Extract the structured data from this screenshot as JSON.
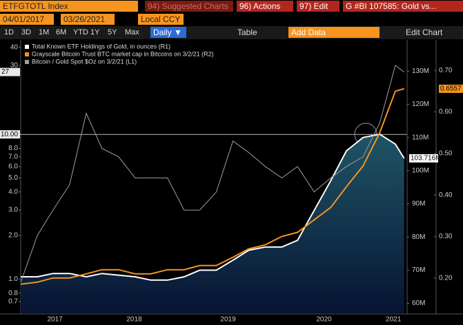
{
  "toolbar": {
    "ticker": "ETFGTOTL Index",
    "suggested": "94) Suggested Charts",
    "actions": "96) Actions",
    "edit": "97) Edit",
    "chart_title": "G #BI 107585: Gold vs...",
    "start": "04/01/2017",
    "end": "03/26/2021",
    "currency": "Local CCY",
    "ranges": [
      "1D",
      "3D",
      "1M",
      "6M",
      "YTD",
      "1Y",
      "5Y",
      "Max"
    ],
    "frequency": "Daily ▼",
    "table": "Table",
    "add_data": "Add Data",
    "edit_chart": "Edit Chart"
  },
  "chart_data": {
    "type": "line",
    "x": [
      2017.25,
      2017.42,
      2017.58,
      2017.75,
      2017.92,
      2018.08,
      2018.25,
      2018.42,
      2018.58,
      2018.75,
      2018.92,
      2019.08,
      2019.25,
      2019.42,
      2019.58,
      2019.75,
      2019.92,
      2020.08,
      2020.25,
      2020.42,
      2020.58,
      2020.75,
      2020.92,
      2021.08,
      2021.17
    ],
    "xlim": [
      2017.25,
      2021.2
    ],
    "xticks": [
      {
        "value": 2017.6,
        "label": "2017"
      },
      {
        "value": 2018.41,
        "label": "2018"
      },
      {
        "value": 2019.37,
        "label": "2019"
      },
      {
        "value": 2020.35,
        "label": "2020"
      },
      {
        "value": 2021.06,
        "label": "2021"
      }
    ],
    "ylim": [
      0.58,
      44
    ],
    "log_scale": true,
    "yticks": [
      0.7,
      0.8,
      {
        "value": 1,
        "label": "1.0"
      },
      {
        "value": 2,
        "label": "2.0"
      },
      {
        "value": 3,
        "label": "3.0"
      },
      {
        "value": 4,
        "label": "4.0"
      },
      {
        "value": 5,
        "label": "5.0"
      },
      {
        "value": 6,
        "label": "6.0"
      },
      {
        "value": 7,
        "label": "7.0"
      },
      {
        "value": 8,
        "label": "8.0"
      },
      30,
      40
    ],
    "reference_line": {
      "value": 10,
      "label": "10.00"
    },
    "y2lim": [
      57,
      139
    ],
    "y2ticks": [
      {
        "value": 60,
        "label": "60M"
      },
      {
        "value": 70,
        "label": "70M"
      },
      {
        "value": 80,
        "label": "80M"
      },
      {
        "value": 90,
        "label": "90M"
      },
      {
        "value": 100,
        "label": "100M"
      },
      {
        "value": 110,
        "label": "110M"
      },
      {
        "value": 120,
        "label": "120M"
      },
      {
        "value": 130,
        "label": "130M"
      }
    ],
    "y3lim": [
      0.115,
      0.77
    ],
    "y3ticks": [
      {
        "value": 0.2,
        "label": "0.20"
      },
      {
        "value": 0.3,
        "label": "0.30"
      },
      {
        "value": 0.4,
        "label": "0.40"
      },
      {
        "value": 0.5,
        "label": "0.50"
      },
      {
        "value": 0.6,
        "label": "0.60"
      },
      {
        "value": 0.7,
        "label": "0.70"
      }
    ],
    "series": [
      {
        "name": "Total Known ETF Holdings of Gold, in ounces (R1)",
        "color": "#ffffff",
        "axis": "y2",
        "fill": true,
        "last_label": "103.716M",
        "values": [
          68,
          68,
          69,
          69,
          68,
          69,
          68.5,
          68,
          67,
          67,
          68,
          70,
          70,
          73,
          76,
          77,
          77,
          79,
          88,
          97,
          106,
          110,
          111,
          108,
          103.716
        ]
      },
      {
        "name": "Grayscale Bitcoin Trust BTC market cap in Bitcoins on 3/2/21 (R2)",
        "color": "#f7941d",
        "axis": "y3",
        "last_label": "0.6557",
        "values": [
          0.185,
          0.19,
          0.2,
          0.2,
          0.21,
          0.22,
          0.22,
          0.21,
          0.21,
          0.22,
          0.22,
          0.23,
          0.23,
          0.25,
          0.27,
          0.28,
          0.3,
          0.31,
          0.34,
          0.37,
          0.42,
          0.47,
          0.55,
          0.65,
          0.6557
        ]
      },
      {
        "name": "Bitcoin / Gold Spot $Oz on 3/2/21 (L1)",
        "color": "#a0a0a0",
        "axis": "y",
        "last_label": "27",
        "values": [
          0.95,
          2,
          3,
          4.5,
          14,
          8,
          7,
          5,
          5,
          5,
          3,
          3,
          4,
          9,
          7.5,
          6,
          5,
          6,
          4,
          5,
          6,
          7,
          12,
          30,
          27
        ]
      }
    ]
  }
}
